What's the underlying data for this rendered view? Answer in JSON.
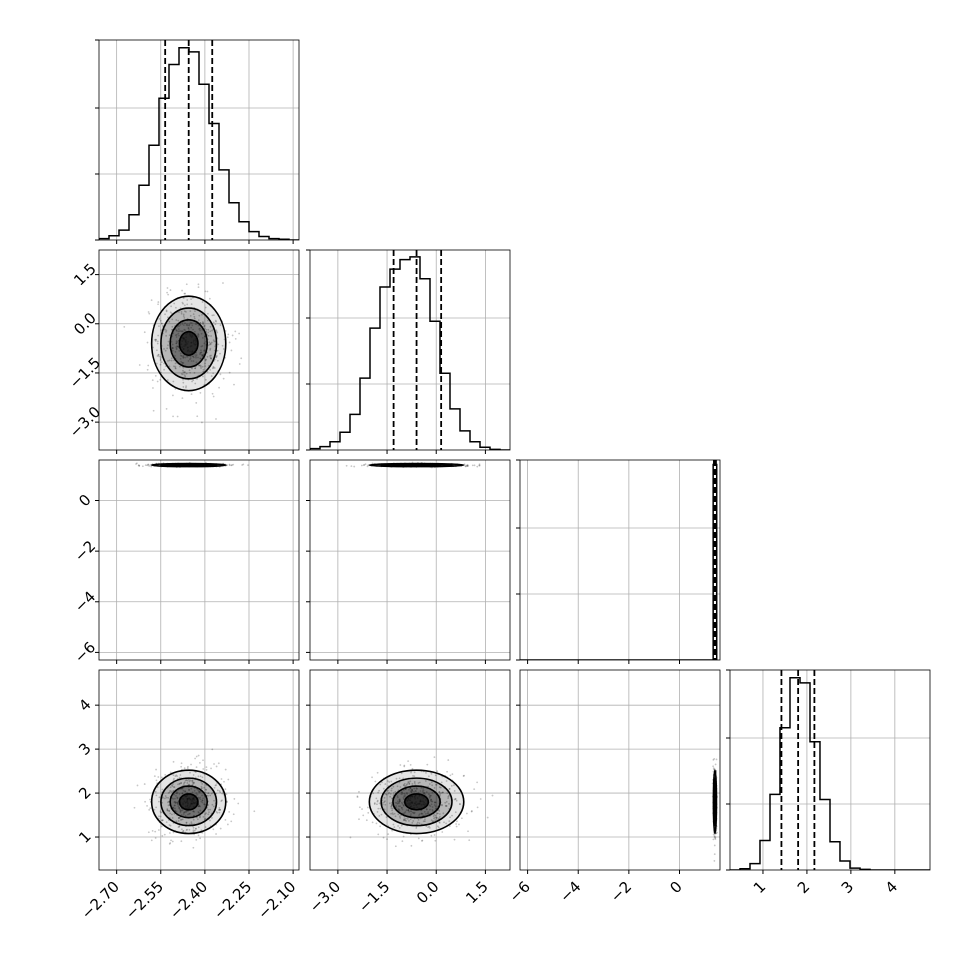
{
  "chart_data": {
    "type": "corner",
    "grid": true,
    "parameters": [
      {
        "index": 0,
        "range": [
          -2.76,
          -2.08
        ],
        "ticks": [
          -2.7,
          -2.55,
          -2.4,
          -2.25,
          -2.1
        ],
        "tick_labels": [
          "−2.70",
          "−2.55",
          "−2.40",
          "−2.25",
          "−2.10"
        ],
        "center": -2.455,
        "sigma": 0.063,
        "quantiles": [
          -2.535,
          -2.455,
          -2.375
        ]
      },
      {
        "index": 1,
        "range": [
          -3.85,
          2.25
        ],
        "ticks": [
          -3.0,
          -1.5,
          0.0,
          1.5
        ],
        "tick_labels": [
          "−3.0",
          "−1.5",
          "0.0",
          "1.5"
        ],
        "center": -0.6,
        "sigma": 0.72,
        "quantiles": [
          -1.3,
          -0.6,
          0.15
        ]
      },
      {
        "index": 2,
        "range": [
          -6.3,
          1.6
        ],
        "ticks": [
          -6,
          -4,
          -2,
          0
        ],
        "tick_labels": [
          "−6",
          "−4",
          "−2",
          "0"
        ],
        "center": 1.4,
        "sigma": 0.03,
        "quantiles": [
          1.36,
          1.4,
          1.44
        ]
      },
      {
        "index": 3,
        "range": [
          0.25,
          4.8
        ],
        "ticks": [
          1,
          2,
          3,
          4
        ],
        "tick_labels": [
          "1",
          "2",
          "3",
          "4"
        ],
        "center": 1.8,
        "sigma": 0.36,
        "quantiles": [
          1.42,
          1.8,
          2.17
        ]
      }
    ],
    "hist_1d": [
      {
        "param": 0,
        "bin_edges": [
          -2.76,
          -2.726,
          -2.692,
          -2.658,
          -2.624,
          -2.59,
          -2.556,
          -2.522,
          -2.488,
          -2.454,
          -2.42,
          -2.386,
          -2.352,
          -2.318,
          -2.284,
          -2.25,
          -2.216,
          -2.182,
          -2.148,
          -2.114,
          -2.08
        ],
        "counts": [
          2,
          6,
          14,
          36,
          78,
          135,
          202,
          250,
          274,
          268,
          222,
          166,
          100,
          53,
          26,
          12,
          5,
          2,
          1,
          0
        ],
        "ymax": 285
      },
      {
        "param": 1,
        "bin_edges": [
          -3.85,
          -3.545,
          -3.24,
          -2.935,
          -2.63,
          -2.325,
          -2.02,
          -1.715,
          -1.41,
          -1.105,
          -0.8,
          -0.495,
          -0.19,
          0.115,
          0.42,
          0.725,
          1.03,
          1.335,
          1.64,
          1.945,
          2.25
        ],
        "counts": [
          2,
          5,
          12,
          26,
          52,
          105,
          178,
          238,
          264,
          278,
          282,
          250,
          188,
          112,
          60,
          28,
          12,
          4,
          1,
          0
        ],
        "ymax": 292
      },
      {
        "param": 2,
        "bin_edges": [
          -6.3,
          1.33,
          1.47
        ],
        "counts": [
          0,
          430
        ],
        "ymax": 440
      },
      {
        "param": 3,
        "bin_edges": [
          0.25,
          0.478,
          0.705,
          0.932,
          1.16,
          1.387,
          1.615,
          1.843,
          2.07,
          2.297,
          2.525,
          2.752,
          2.98,
          3.208,
          3.435,
          3.662,
          3.89,
          4.118,
          4.345,
          4.572,
          4.8
        ],
        "counts": [
          0,
          2,
          10,
          46,
          118,
          222,
          300,
          292,
          200,
          110,
          44,
          14,
          3,
          1,
          0,
          0,
          0,
          0,
          0,
          0
        ],
        "ymax": 312
      }
    ]
  }
}
